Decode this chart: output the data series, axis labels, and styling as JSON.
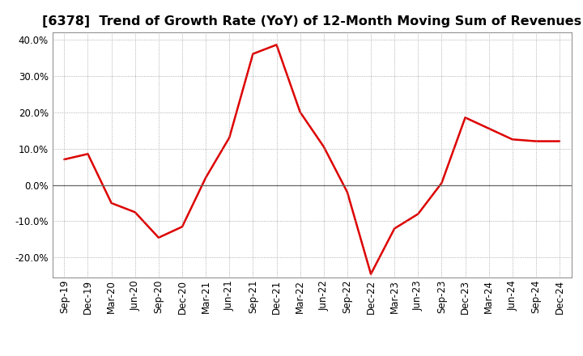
{
  "title": "[6378]  Trend of Growth Rate (YoY) of 12-Month Moving Sum of Revenues",
  "line_color": "#DD0000",
  "line_width": 1.8,
  "background_color": "#FFFFFF",
  "grid_color": "#999999",
  "ylim": [
    -0.255,
    0.42
  ],
  "yticks": [
    -0.2,
    -0.1,
    0.0,
    0.1,
    0.2,
    0.3,
    0.4
  ],
  "values": [
    0.07,
    0.085,
    -0.05,
    -0.075,
    -0.145,
    -0.115,
    0.02,
    0.13,
    0.36,
    0.385,
    0.2,
    0.105,
    -0.02,
    -0.245,
    -0.12,
    -0.08,
    0.005,
    0.185,
    0.155,
    0.125,
    0.12,
    0.12
  ],
  "xtick_labels": [
    "Sep-19",
    "Dec-19",
    "Mar-20",
    "Jun-20",
    "Sep-20",
    "Dec-20",
    "Mar-21",
    "Jun-21",
    "Sep-21",
    "Dec-21",
    "Mar-22",
    "Jun-22",
    "Sep-22",
    "Dec-22",
    "Mar-23",
    "Jun-23",
    "Sep-23",
    "Dec-23",
    "Mar-24",
    "Jun-24",
    "Sep-24",
    "Dec-24"
  ],
  "title_fontsize": 11.5,
  "tick_fontsize": 8.5,
  "fig_bg_color": "#FFFFFF",
  "zero_line_color": "#666666",
  "spine_color": "#888888"
}
